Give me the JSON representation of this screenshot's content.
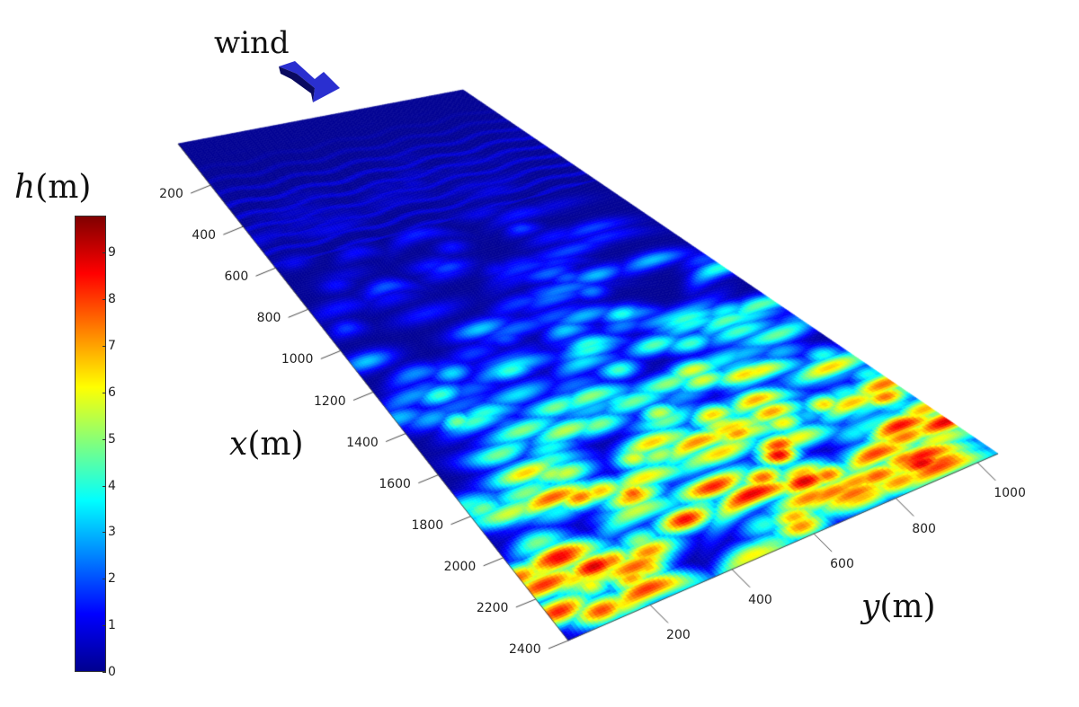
{
  "chart_data": {
    "type": "heatmap",
    "title": "",
    "annotation": "wind",
    "xlabel": "x(m)",
    "ylabel": "y(m)",
    "colorbar_label": "h(m)",
    "x_ticks": [
      200,
      400,
      600,
      800,
      1000,
      1200,
      1400,
      1600,
      1800,
      2000,
      2200,
      2400
    ],
    "y_ticks": [
      200,
      400,
      600,
      800,
      1000
    ],
    "colorbar_ticks": [
      0,
      1,
      2,
      3,
      4,
      5,
      6,
      7,
      8,
      9
    ],
    "xlim": [
      0,
      2400
    ],
    "ylim": [
      0,
      1050
    ],
    "clim": [
      0,
      9.8
    ],
    "colormap": "jet",
    "description_of_field": "dune height grows with x; flat near x=0, crescent dunes up to ~9 m beyond x≈1400"
  },
  "labels": {
    "wind": "wind",
    "h_var": "h",
    "h_unit": "(m)",
    "x_var": "x",
    "x_unit": "(m)",
    "y_var": "y",
    "y_unit": "(m)"
  },
  "colors": {
    "arrow": "#2a2fd0",
    "background_low": "#00008f"
  }
}
